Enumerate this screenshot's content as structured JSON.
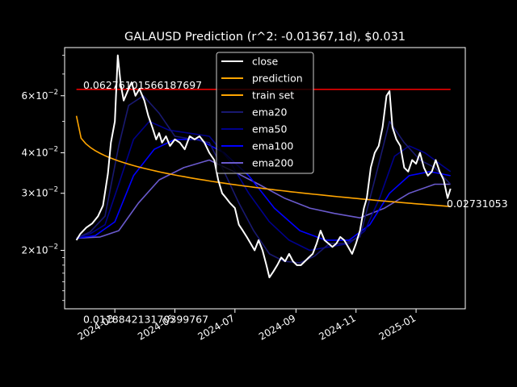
{
  "chart_data": {
    "type": "line",
    "title": "GALAUSD Prediction (r^2: -0.01367,1d), $0.031",
    "xlabel": "",
    "ylabel": "",
    "yscale": "log",
    "xlim": [
      "2024-01-10",
      "2025-02-20"
    ],
    "ylim": [
      0.0132,
      0.0845
    ],
    "x_ticks": [
      "2024-03",
      "2024-05",
      "2024-07",
      "2024-09",
      "2024-11",
      "2025-01"
    ],
    "x_tick_dates": [
      "2024-03-01",
      "2024-05-01",
      "2024-07-01",
      "2024-09-01",
      "2024-11-01",
      "2025-01-01"
    ],
    "y_ticks": [
      {
        "value": 0.02,
        "mantissa": "2",
        "exp": "−2"
      },
      {
        "value": 0.03,
        "mantissa": "3",
        "exp": "−2"
      },
      {
        "value": 0.04,
        "mantissa": "4",
        "exp": "−2"
      },
      {
        "value": 0.06,
        "mantissa": "6",
        "exp": "−2"
      }
    ],
    "y_tick_base": "×10",
    "grid": false,
    "legend_position": "top-center",
    "resistance": {
      "value": 0.06276101566187697,
      "label": "0.06276101566187697",
      "color": "#ff0000"
    },
    "support": {
      "value": 0.011884213170399767,
      "label": "0.011884213170399767",
      "color": "#008000"
    },
    "last_prediction_label": "0.02731053",
    "series": [
      {
        "name": "close",
        "color": "#ffffff",
        "width": 2,
        "x": [
          "2024-01-22",
          "2024-01-26",
          "2024-02-01",
          "2024-02-07",
          "2024-02-13",
          "2024-02-18",
          "2024-02-23",
          "2024-02-26",
          "2024-03-01",
          "2024-03-04",
          "2024-03-07",
          "2024-03-10",
          "2024-03-14",
          "2024-03-18",
          "2024-03-22",
          "2024-03-26",
          "2024-03-31",
          "2024-04-04",
          "2024-04-08",
          "2024-04-12",
          "2024-04-15",
          "2024-04-18",
          "2024-04-22",
          "2024-04-26",
          "2024-05-01",
          "2024-05-06",
          "2024-05-11",
          "2024-05-16",
          "2024-05-21",
          "2024-05-26",
          "2024-05-31",
          "2024-06-05",
          "2024-06-10",
          "2024-06-14",
          "2024-06-18",
          "2024-06-22",
          "2024-06-26",
          "2024-07-01",
          "2024-07-05",
          "2024-07-09",
          "2024-07-13",
          "2024-07-17",
          "2024-07-21",
          "2024-07-25",
          "2024-07-29",
          "2024-08-02",
          "2024-08-05",
          "2024-08-09",
          "2024-08-13",
          "2024-08-17",
          "2024-08-21",
          "2024-08-25",
          "2024-08-29",
          "2024-09-02",
          "2024-09-06",
          "2024-09-10",
          "2024-09-14",
          "2024-09-18",
          "2024-09-22",
          "2024-09-26",
          "2024-09-30",
          "2024-10-04",
          "2024-10-08",
          "2024-10-12",
          "2024-10-16",
          "2024-10-20",
          "2024-10-24",
          "2024-10-28",
          "2024-11-01",
          "2024-11-05",
          "2024-11-09",
          "2024-11-12",
          "2024-11-16",
          "2024-11-20",
          "2024-11-24",
          "2024-11-28",
          "2024-12-02",
          "2024-12-05",
          "2024-12-08",
          "2024-12-12",
          "2024-12-16",
          "2024-12-20",
          "2024-12-24",
          "2024-12-28",
          "2025-01-01",
          "2025-01-05",
          "2025-01-09",
          "2025-01-13",
          "2025-01-17",
          "2025-01-21",
          "2025-01-25",
          "2025-01-29",
          "2025-02-02",
          "2025-02-05"
        ],
        "values": [
          0.0215,
          0.0225,
          0.0235,
          0.0242,
          0.0255,
          0.0275,
          0.0345,
          0.043,
          0.05,
          0.08,
          0.065,
          0.058,
          0.062,
          0.066,
          0.06,
          0.063,
          0.058,
          0.052,
          0.048,
          0.044,
          0.046,
          0.043,
          0.045,
          0.042,
          0.044,
          0.043,
          0.041,
          0.045,
          0.044,
          0.045,
          0.043,
          0.04,
          0.038,
          0.033,
          0.03,
          0.029,
          0.028,
          0.027,
          0.024,
          0.023,
          0.022,
          0.021,
          0.02,
          0.0215,
          0.02,
          0.018,
          0.0165,
          0.0172,
          0.018,
          0.019,
          0.0185,
          0.0195,
          0.0185,
          0.018,
          0.018,
          0.0185,
          0.019,
          0.0195,
          0.021,
          0.023,
          0.0215,
          0.021,
          0.0205,
          0.021,
          0.022,
          0.0215,
          0.0205,
          0.0195,
          0.021,
          0.023,
          0.027,
          0.029,
          0.036,
          0.04,
          0.042,
          0.048,
          0.06,
          0.062,
          0.048,
          0.044,
          0.042,
          0.036,
          0.035,
          0.038,
          0.037,
          0.04,
          0.036,
          0.034,
          0.035,
          0.038,
          0.035,
          0.033,
          0.029,
          0.031
        ]
      },
      {
        "name": "prediction",
        "color": "#ffa500",
        "width": 1.6,
        "type": "fit",
        "x_start": "2024-01-22",
        "x_end": "2025-02-05",
        "start": 0.052,
        "end": 0.02731053
      },
      {
        "name": "train set",
        "color": "#ffa500",
        "width": 1.6,
        "hidden_under": "prediction"
      },
      {
        "name": "ema20",
        "color": "#191970",
        "width": 1.6,
        "x": [
          "2024-01-22",
          "2024-02-05",
          "2024-02-20",
          "2024-03-05",
          "2024-03-15",
          "2024-03-30",
          "2024-04-15",
          "2024-05-01",
          "2024-05-20",
          "2024-06-05",
          "2024-06-20",
          "2024-07-05",
          "2024-07-20",
          "2024-08-05",
          "2024-08-20",
          "2024-09-05",
          "2024-09-20",
          "2024-10-05",
          "2024-10-20",
          "2024-11-05",
          "2024-11-20",
          "2024-12-05",
          "2024-12-20",
          "2025-01-05",
          "2025-01-20",
          "2025-02-05"
        ],
        "values": [
          0.0218,
          0.0228,
          0.0255,
          0.042,
          0.056,
          0.06,
          0.053,
          0.045,
          0.044,
          0.043,
          0.035,
          0.028,
          0.023,
          0.0195,
          0.0185,
          0.0183,
          0.0192,
          0.021,
          0.021,
          0.022,
          0.033,
          0.05,
          0.043,
          0.038,
          0.036,
          0.032
        ]
      },
      {
        "name": "ema50",
        "color": "#00008b",
        "width": 1.6,
        "x": [
          "2024-01-22",
          "2024-02-05",
          "2024-02-20",
          "2024-03-05",
          "2024-03-20",
          "2024-04-05",
          "2024-04-25",
          "2024-05-15",
          "2024-06-05",
          "2024-06-25",
          "2024-07-15",
          "2024-08-05",
          "2024-08-25",
          "2024-09-15",
          "2024-10-05",
          "2024-10-25",
          "2024-11-10",
          "2024-11-25",
          "2024-12-10",
          "2024-12-25",
          "2025-01-10",
          "2025-01-25",
          "2025-02-05"
        ],
        "values": [
          0.0218,
          0.0225,
          0.024,
          0.032,
          0.044,
          0.05,
          0.047,
          0.046,
          0.045,
          0.038,
          0.03,
          0.0245,
          0.0215,
          0.02,
          0.0205,
          0.021,
          0.023,
          0.029,
          0.039,
          0.042,
          0.04,
          0.037,
          0.035
        ]
      },
      {
        "name": "ema100",
        "color": "#0000ff",
        "width": 1.6,
        "x": [
          "2024-01-22",
          "2024-02-10",
          "2024-03-01",
          "2024-03-20",
          "2024-04-10",
          "2024-05-01",
          "2024-05-25",
          "2024-06-20",
          "2024-07-15",
          "2024-08-10",
          "2024-09-05",
          "2024-10-01",
          "2024-10-25",
          "2024-11-15",
          "2024-12-05",
          "2024-12-25",
          "2025-01-15",
          "2025-02-05"
        ],
        "values": [
          0.0218,
          0.0222,
          0.0245,
          0.034,
          0.041,
          0.044,
          0.044,
          0.04,
          0.034,
          0.027,
          0.023,
          0.0215,
          0.0215,
          0.024,
          0.03,
          0.034,
          0.035,
          0.034
        ]
      },
      {
        "name": "ema200",
        "color": "#6a5acd",
        "width": 1.6,
        "x": [
          "2024-01-22",
          "2024-02-15",
          "2024-03-05",
          "2024-03-25",
          "2024-04-15",
          "2024-05-10",
          "2024-06-05",
          "2024-06-30",
          "2024-07-25",
          "2024-08-20",
          "2024-09-15",
          "2024-10-10",
          "2024-11-05",
          "2024-11-30",
          "2024-12-25",
          "2025-01-20",
          "2025-02-05"
        ],
        "values": [
          0.0218,
          0.022,
          0.023,
          0.028,
          0.033,
          0.036,
          0.038,
          0.035,
          0.032,
          0.029,
          0.027,
          0.026,
          0.0252,
          0.027,
          0.03,
          0.032,
          0.032
        ]
      }
    ]
  }
}
